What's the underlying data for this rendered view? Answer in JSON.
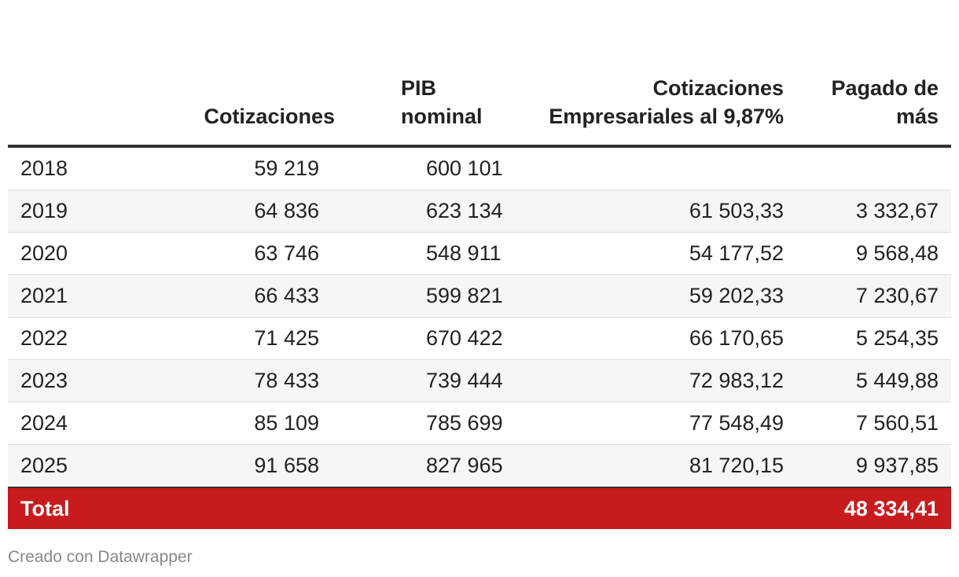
{
  "chart_data": {
    "type": "table",
    "columns": [
      "",
      "Cotizaciones",
      "PIB nominal",
      "Cotizaciones Empresariales al 9,87%",
      "Pagado de más"
    ],
    "header": {
      "year": "",
      "cotizaciones": "Cotizaciones",
      "pib": "PIB nominal",
      "empresariales": "Cotizaciones Empresariales al 9,87%",
      "pagado": "Pagado de más"
    },
    "rows": [
      {
        "year": "2018",
        "cotizaciones": "59 219",
        "pib": "600 101",
        "empresariales": "",
        "pagado": ""
      },
      {
        "year": "2019",
        "cotizaciones": "64 836",
        "pib": "623 134",
        "empresariales": "61 503,33",
        "pagado": "3 332,67"
      },
      {
        "year": "2020",
        "cotizaciones": "63 746",
        "pib": "548 911",
        "empresariales": "54 177,52",
        "pagado": "9 568,48"
      },
      {
        "year": "2021",
        "cotizaciones": "66 433",
        "pib": "599 821",
        "empresariales": "59 202,33",
        "pagado": "7 230,67"
      },
      {
        "year": "2022",
        "cotizaciones": "71 425",
        "pib": "670 422",
        "empresariales": "66 170,65",
        "pagado": "5 254,35"
      },
      {
        "year": "2023",
        "cotizaciones": "78 433",
        "pib": "739 444",
        "empresariales": "72 983,12",
        "pagado": "5 449,88"
      },
      {
        "year": "2024",
        "cotizaciones": "85 109",
        "pib": "785 699",
        "empresariales": "77 548,49",
        "pagado": "7 560,51"
      },
      {
        "year": "2025",
        "cotizaciones": "91 658",
        "pib": "827 965",
        "empresariales": "81 720,15",
        "pagado": "9 937,85"
      }
    ],
    "total": {
      "label": "Total",
      "value": "48 334,41"
    }
  },
  "footer": {
    "credit": "Creado con Datawrapper"
  },
  "colors": {
    "total_row": "#c81b1d",
    "stripe": "#f6f6f6",
    "text": "#222222",
    "footer_text": "#888888"
  }
}
